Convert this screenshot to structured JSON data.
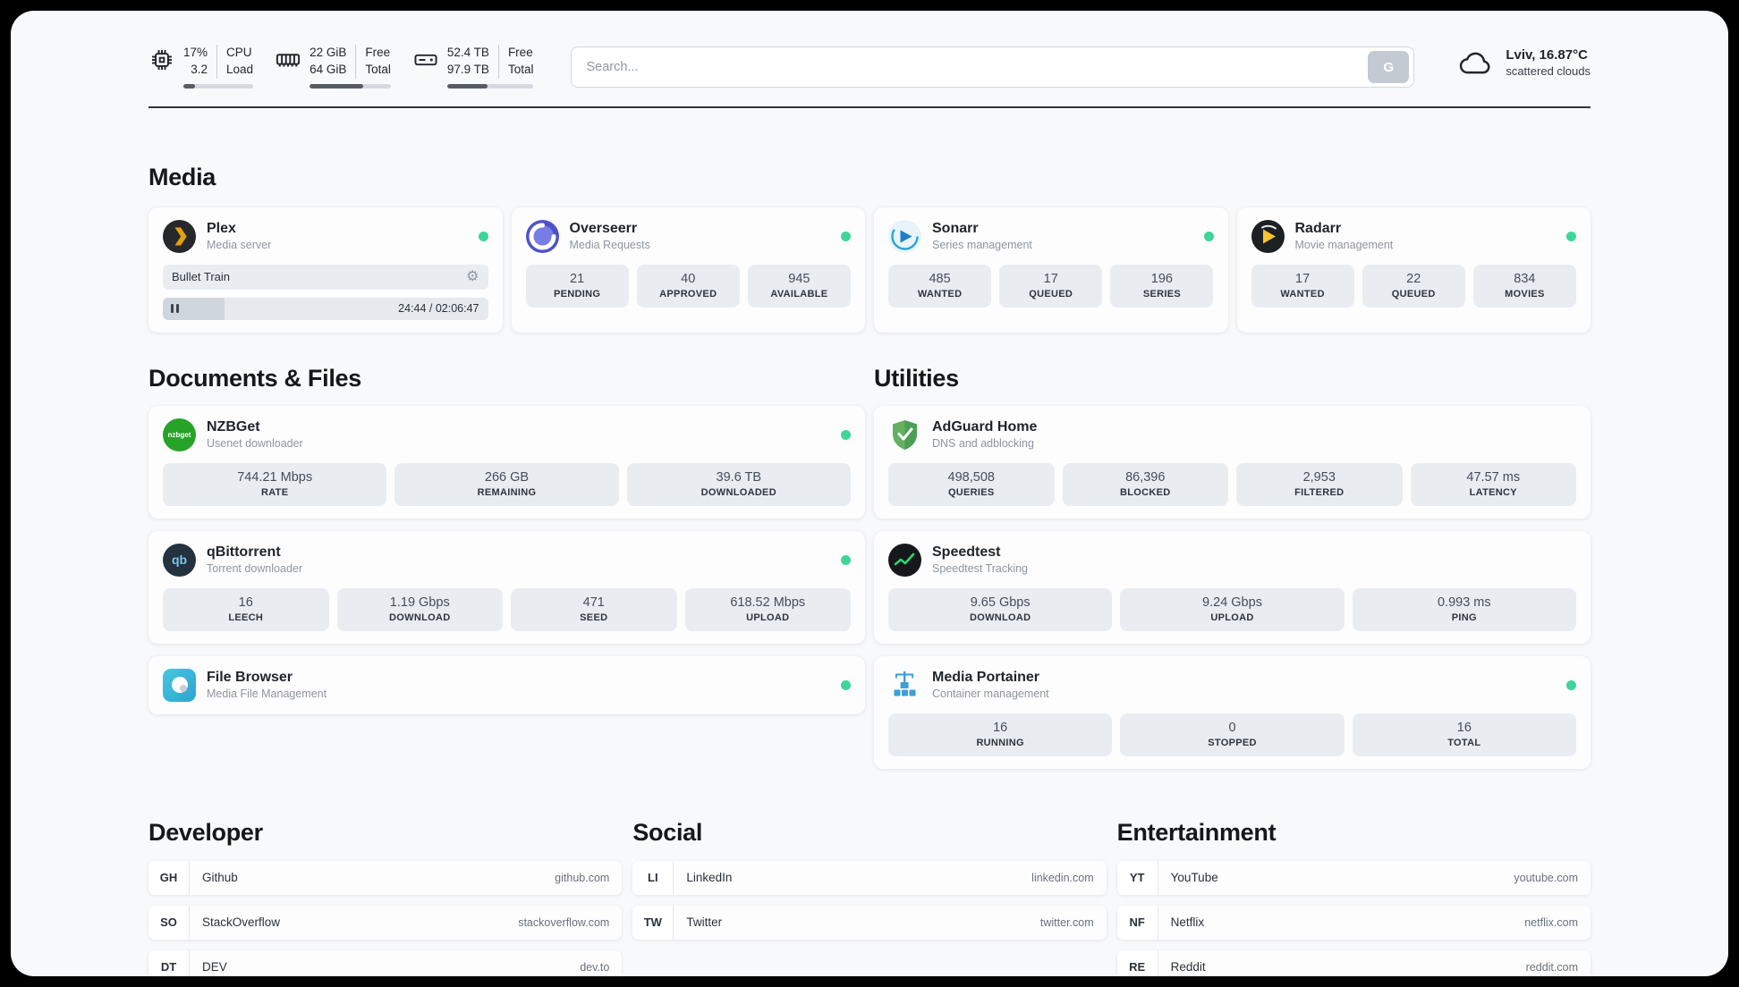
{
  "header": {
    "cpu": {
      "value_top": "17%",
      "value_bottom": "3.2",
      "label_top": "CPU",
      "label_bottom": "Load",
      "progress_pct": 17
    },
    "ram": {
      "value_top": "22 GiB",
      "value_bottom": "64 GiB",
      "label_top": "Free",
      "label_bottom": "Total",
      "progress_pct": 66
    },
    "disk": {
      "value_top": "52.4 TB",
      "value_bottom": "97.9 TB",
      "label_top": "Free",
      "label_bottom": "Total",
      "progress_pct": 47
    },
    "search": {
      "placeholder": "Search...",
      "button_label": "G"
    },
    "weather": {
      "location": "Lviv, 16.87°C",
      "condition": "scattered clouds"
    }
  },
  "media": {
    "title": "Media",
    "plex": {
      "title": "Plex",
      "subtitle": "Media server",
      "now_playing": "Bullet Train",
      "time": "24:44 / 02:06:47",
      "progress_pct": 19
    },
    "overseerr": {
      "title": "Overseerr",
      "subtitle": "Media Requests",
      "stats": [
        {
          "value": "21",
          "label": "PENDING"
        },
        {
          "value": "40",
          "label": "APPROVED"
        },
        {
          "value": "945",
          "label": "AVAILABLE"
        }
      ]
    },
    "sonarr": {
      "title": "Sonarr",
      "subtitle": "Series management",
      "stats": [
        {
          "value": "485",
          "label": "WANTED"
        },
        {
          "value": "17",
          "label": "QUEUED"
        },
        {
          "value": "196",
          "label": "SERIES"
        }
      ]
    },
    "radarr": {
      "title": "Radarr",
      "subtitle": "Movie management",
      "stats": [
        {
          "value": "17",
          "label": "WANTED"
        },
        {
          "value": "22",
          "label": "QUEUED"
        },
        {
          "value": "834",
          "label": "MOVIES"
        }
      ]
    }
  },
  "documents": {
    "title": "Documents & Files",
    "nzbget": {
      "title": "NZBGet",
      "subtitle": "Usenet downloader",
      "stats": [
        {
          "value": "744.21 Mbps",
          "label": "RATE"
        },
        {
          "value": "266 GB",
          "label": "REMAINING"
        },
        {
          "value": "39.6 TB",
          "label": "DOWNLOADED"
        }
      ]
    },
    "qbittorrent": {
      "title": "qBittorrent",
      "subtitle": "Torrent downloader",
      "stats": [
        {
          "value": "16",
          "label": "LEECH"
        },
        {
          "value": "1.19 Gbps",
          "label": "DOWNLOAD"
        },
        {
          "value": "471",
          "label": "SEED"
        },
        {
          "value": "618.52 Mbps",
          "label": "UPLOAD"
        }
      ]
    },
    "filebrowser": {
      "title": "File Browser",
      "subtitle": "Media File Management"
    }
  },
  "utilities": {
    "title": "Utilities",
    "adguard": {
      "title": "AdGuard Home",
      "subtitle": "DNS and adblocking",
      "stats": [
        {
          "value": "498,508",
          "label": "QUERIES"
        },
        {
          "value": "86,396",
          "label": "BLOCKED"
        },
        {
          "value": "2,953",
          "label": "FILTERED"
        },
        {
          "value": "47.57 ms",
          "label": "LATENCY"
        }
      ]
    },
    "speedtest": {
      "title": "Speedtest",
      "subtitle": "Speedtest Tracking",
      "stats": [
        {
          "value": "9.65 Gbps",
          "label": "DOWNLOAD"
        },
        {
          "value": "9.24 Gbps",
          "label": "UPLOAD"
        },
        {
          "value": "0.993 ms",
          "label": "PING"
        }
      ]
    },
    "portainer": {
      "title": "Media Portainer",
      "subtitle": "Container management",
      "stats": [
        {
          "value": "16",
          "label": "RUNNING"
        },
        {
          "value": "0",
          "label": "STOPPED"
        },
        {
          "value": "16",
          "label": "TOTAL"
        }
      ]
    }
  },
  "bookmarks": {
    "developer": {
      "title": "Developer",
      "items": [
        {
          "abbr": "GH",
          "name": "Github",
          "url": "github.com"
        },
        {
          "abbr": "SO",
          "name": "StackOverflow",
          "url": "stackoverflow.com"
        },
        {
          "abbr": "DT",
          "name": "DEV",
          "url": "dev.to"
        }
      ]
    },
    "social": {
      "title": "Social",
      "items": [
        {
          "abbr": "LI",
          "name": "LinkedIn",
          "url": "linkedin.com"
        },
        {
          "abbr": "TW",
          "name": "Twitter",
          "url": "twitter.com"
        }
      ]
    },
    "entertainment": {
      "title": "Entertainment",
      "items": [
        {
          "abbr": "YT",
          "name": "YouTube",
          "url": "youtube.com"
        },
        {
          "abbr": "NF",
          "name": "Netflix",
          "url": "netflix.com"
        },
        {
          "abbr": "RE",
          "name": "Reddit",
          "url": "reddit.com"
        }
      ]
    }
  },
  "icons": {
    "nzbget_text": "nzbget",
    "qbittorrent_text": "qb"
  },
  "colors": {
    "status_online": "#3ed598"
  }
}
